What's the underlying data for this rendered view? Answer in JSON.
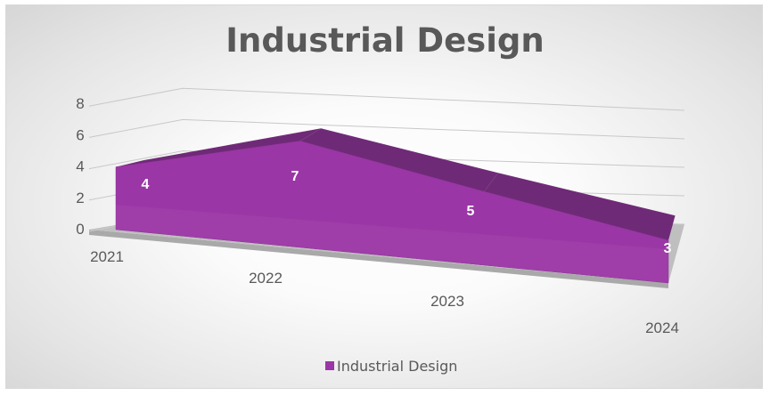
{
  "chart_data": {
    "type": "area",
    "title": "Industrial Design",
    "categories": [
      "2021",
      "2022",
      "2023",
      "2024"
    ],
    "series": [
      {
        "name": "Industrial Design",
        "values": [
          4,
          7,
          5,
          3
        ]
      }
    ],
    "ylim": [
      0,
      8
    ],
    "yticks": [
      "0",
      "2",
      "4",
      "6",
      "8"
    ],
    "grid": true,
    "legend": "bottom",
    "data_labels": true,
    "style": "3d",
    "colors": {
      "series": "#9b36a6",
      "series_top": "#6f2a77",
      "floor": "#bfbfbf",
      "grid": "#c8c8c8",
      "text": "#595959",
      "label": "#ffffff"
    }
  }
}
